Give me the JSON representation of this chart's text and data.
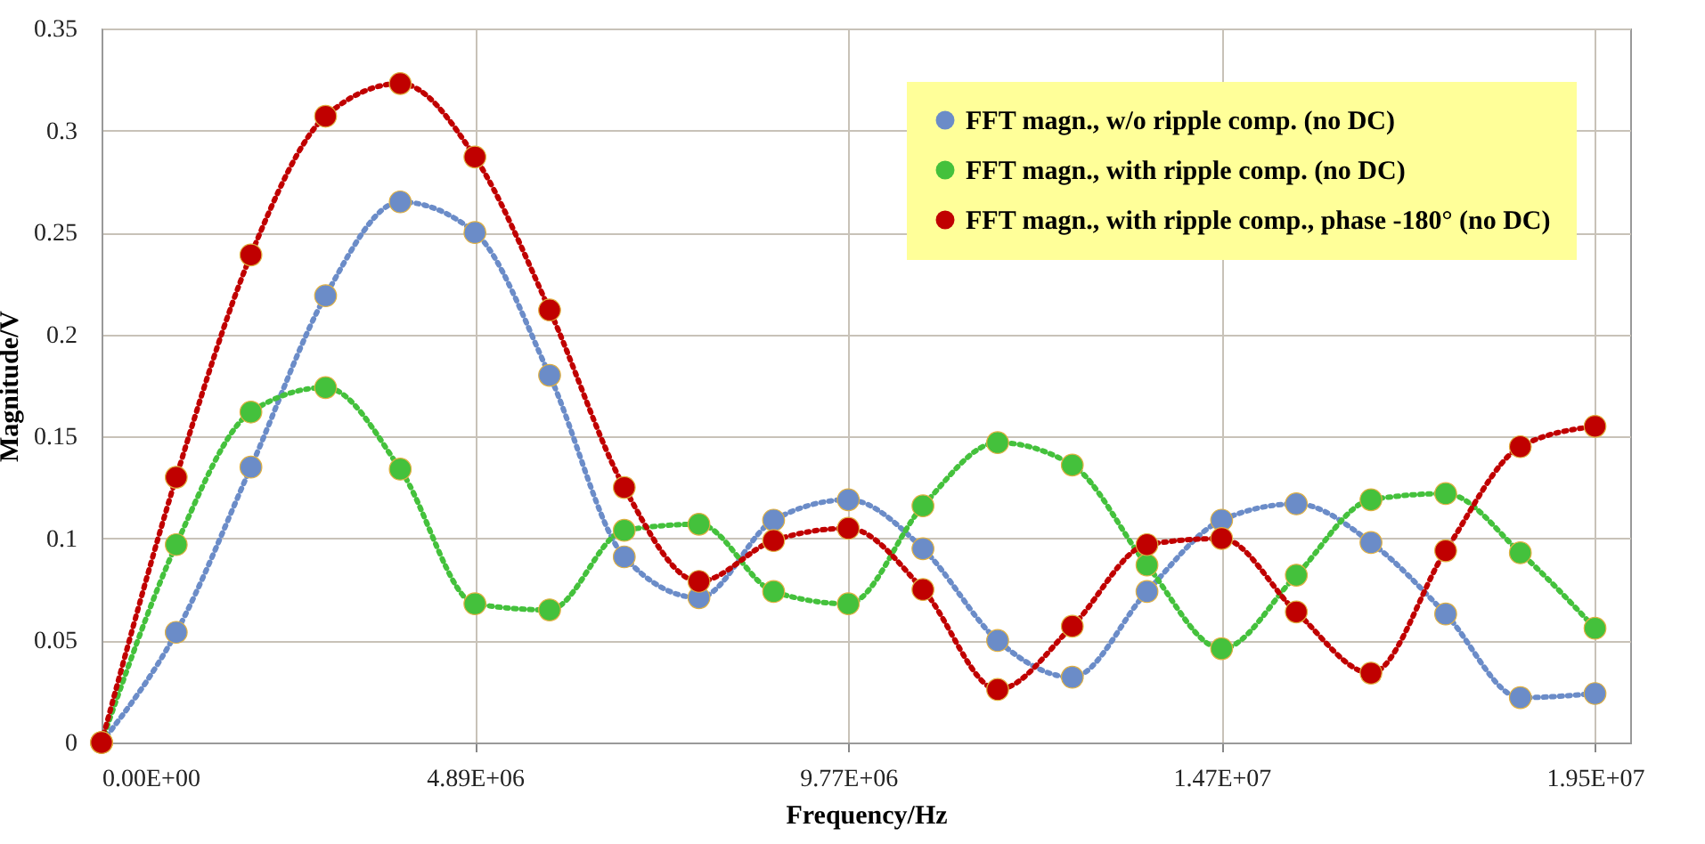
{
  "chart_data": {
    "type": "line",
    "xlabel": "Frequency/Hz",
    "ylabel": "Magnitude/V",
    "x": [
      0,
      977000,
      1954000,
      2931000,
      3908000,
      4885000,
      5862000,
      6839000,
      7816000,
      8793000,
      9770000,
      10747000,
      11724000,
      12701000,
      13678000,
      14655000,
      15632000,
      16609000,
      17586000,
      18563000,
      19540000
    ],
    "series": [
      {
        "name": "FFT magn., w/o ripple comp. (no DC)",
        "color": "#6b8cc8",
        "values": [
          0,
          0.054,
          0.135,
          0.219,
          0.265,
          0.25,
          0.18,
          0.091,
          0.071,
          0.109,
          0.119,
          0.095,
          0.05,
          0.032,
          0.074,
          0.109,
          0.117,
          0.098,
          0.063,
          0.022,
          0.024
        ]
      },
      {
        "name": "FFT magn., with ripple comp. (no DC)",
        "color": "#44c13c",
        "values": [
          0,
          0.097,
          0.162,
          0.174,
          0.134,
          0.068,
          0.065,
          0.104,
          0.107,
          0.074,
          0.068,
          0.116,
          0.147,
          0.136,
          0.087,
          0.046,
          0.082,
          0.119,
          0.122,
          0.093,
          0.056
        ]
      },
      {
        "name": "FFT magn., with ripple comp., phase -180° (no DC)",
        "color": "#c00000",
        "values": [
          0,
          0.13,
          0.239,
          0.307,
          0.323,
          0.287,
          0.212,
          0.125,
          0.079,
          0.099,
          0.105,
          0.075,
          0.026,
          0.057,
          0.097,
          0.1,
          0.064,
          0.034,
          0.094,
          0.145,
          0.155
        ]
      }
    ],
    "xlim": [
      0,
      20000000
    ],
    "xticks": [
      {
        "value": 0,
        "label": "0.00E+00"
      },
      {
        "value": 4885000,
        "label": "4.89E+06"
      },
      {
        "value": 9770000,
        "label": "9.77E+06"
      },
      {
        "value": 14655000,
        "label": "1.47E+07"
      },
      {
        "value": 19540000,
        "label": "1.95E+07"
      }
    ],
    "ylim": [
      0,
      0.35
    ],
    "yticks": [
      0,
      0.05,
      0.1,
      0.15,
      0.2,
      0.25,
      0.3,
      0.35
    ],
    "grid": true,
    "legend": "top right",
    "marker": "circle",
    "line_style": "dotted"
  }
}
